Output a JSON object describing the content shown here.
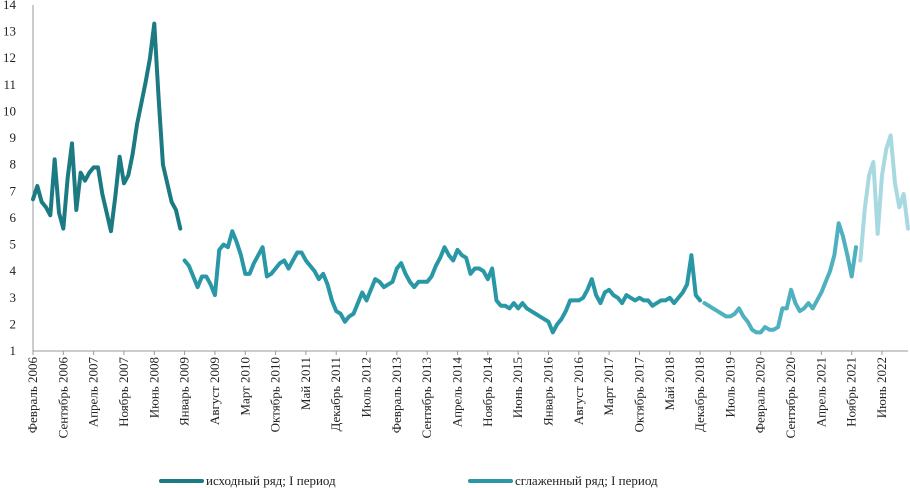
{
  "chart_data": {
    "type": "line",
    "ylim": [
      1,
      14
    ],
    "yticks": [
      1,
      2,
      3,
      4,
      5,
      6,
      7,
      8,
      9,
      10,
      11,
      12,
      13,
      14
    ],
    "x_start": "2006-02",
    "x_end": "2022-12",
    "x_tick_labels": [
      "Февраль 2006",
      "Сентябрь 2006",
      "Апрель 2007",
      "Ноябрь 2007",
      "Июнь 2008",
      "Январь 2009",
      "Август 2009",
      "Март 2010",
      "Октябрь 2010",
      "Май 2011",
      "Декабрь 2011",
      "Июль 2012",
      "Февраль 2013",
      "Сентябрь 2013",
      "Апрель 2014",
      "Ноябрь 2014",
      "Июнь 2015",
      "Январь 2016",
      "Август 2016",
      "Март 2017",
      "Октябрь 2017",
      "Май 2018",
      "Декабрь 2018",
      "Июль 2019",
      "Февраль 2020",
      "Сентябрь 2020",
      "Апрель 2021",
      "Ноябрь 2021",
      "Июнь 2022"
    ],
    "series": [
      {
        "name": "исходный ряд; I период",
        "color": "#1c7a83",
        "points": [
          [
            "2006-02",
            6.7
          ],
          [
            "2006-03",
            7.2
          ],
          [
            "2006-04",
            6.6
          ],
          [
            "2006-05",
            6.4
          ],
          [
            "2006-06",
            6.1
          ],
          [
            "2006-07",
            8.2
          ],
          [
            "2006-08",
            6.2
          ],
          [
            "2006-09",
            5.6
          ],
          [
            "2006-10",
            7.5
          ],
          [
            "2006-11",
            8.8
          ],
          [
            "2006-12",
            6.3
          ],
          [
            "2007-01",
            7.7
          ],
          [
            "2007-02",
            7.4
          ],
          [
            "2007-03",
            7.7
          ],
          [
            "2007-04",
            7.9
          ],
          [
            "2007-05",
            7.9
          ],
          [
            "2007-06",
            6.9
          ],
          [
            "2007-07",
            6.2
          ],
          [
            "2007-08",
            5.5
          ],
          [
            "2007-09",
            6.8
          ],
          [
            "2007-10",
            8.3
          ],
          [
            "2007-11",
            7.3
          ],
          [
            "2007-12",
            7.6
          ],
          [
            "2008-01",
            8.4
          ],
          [
            "2008-02",
            9.5
          ],
          [
            "2008-03",
            10.3
          ],
          [
            "2008-04",
            11.1
          ],
          [
            "2008-05",
            12.0
          ],
          [
            "2008-06",
            13.3
          ],
          [
            "2008-07",
            10.5
          ],
          [
            "2008-08",
            8.0
          ],
          [
            "2008-09",
            7.3
          ],
          [
            "2008-10",
            6.6
          ],
          [
            "2008-11",
            6.3
          ],
          [
            "2008-12",
            5.6
          ]
        ]
      },
      {
        "name": "сглаженный ряд; I период",
        "color": "#2997a5",
        "points": [
          [
            "2009-01",
            4.4
          ],
          [
            "2009-02",
            4.2
          ],
          [
            "2009-03",
            3.8
          ],
          [
            "2009-04",
            3.4
          ],
          [
            "2009-05",
            3.8
          ],
          [
            "2009-06",
            3.8
          ],
          [
            "2009-07",
            3.5
          ],
          [
            "2009-08",
            3.1
          ],
          [
            "2009-09",
            4.8
          ],
          [
            "2009-10",
            5.0
          ],
          [
            "2009-11",
            4.9
          ],
          [
            "2009-12",
            5.5
          ],
          [
            "2010-01",
            5.1
          ],
          [
            "2010-02",
            4.6
          ],
          [
            "2010-03",
            3.9
          ],
          [
            "2010-04",
            3.9
          ],
          [
            "2010-05",
            4.3
          ],
          [
            "2010-06",
            4.6
          ],
          [
            "2010-07",
            4.9
          ],
          [
            "2010-08",
            3.8
          ],
          [
            "2010-09",
            3.9
          ],
          [
            "2010-10",
            4.1
          ],
          [
            "2010-11",
            4.3
          ],
          [
            "2010-12",
            4.4
          ],
          [
            "2011-01",
            4.1
          ],
          [
            "2011-02",
            4.4
          ],
          [
            "2011-03",
            4.7
          ],
          [
            "2011-04",
            4.7
          ],
          [
            "2011-05",
            4.4
          ],
          [
            "2011-06",
            4.2
          ],
          [
            "2011-07",
            4.0
          ],
          [
            "2011-08",
            3.7
          ],
          [
            "2011-09",
            3.9
          ],
          [
            "2011-10",
            3.5
          ],
          [
            "2011-11",
            2.9
          ],
          [
            "2011-12",
            2.5
          ],
          [
            "2012-01",
            2.4
          ],
          [
            "2012-02",
            2.1
          ],
          [
            "2012-03",
            2.3
          ],
          [
            "2012-04",
            2.4
          ],
          [
            "2012-05",
            2.8
          ],
          [
            "2012-06",
            3.2
          ],
          [
            "2012-07",
            2.9
          ],
          [
            "2012-08",
            3.3
          ],
          [
            "2012-09",
            3.7
          ],
          [
            "2012-10",
            3.6
          ],
          [
            "2012-11",
            3.4
          ],
          [
            "2012-12",
            3.5
          ],
          [
            "2013-01",
            3.6
          ],
          [
            "2013-02",
            4.1
          ],
          [
            "2013-03",
            4.3
          ],
          [
            "2013-04",
            3.9
          ],
          [
            "2013-05",
            3.6
          ],
          [
            "2013-06",
            3.4
          ],
          [
            "2013-07",
            3.6
          ],
          [
            "2013-08",
            3.6
          ],
          [
            "2013-09",
            3.6
          ],
          [
            "2013-10",
            3.8
          ],
          [
            "2013-11",
            4.2
          ],
          [
            "2013-12",
            4.5
          ],
          [
            "2014-01",
            4.9
          ],
          [
            "2014-02",
            4.6
          ],
          [
            "2014-03",
            4.4
          ],
          [
            "2014-04",
            4.8
          ],
          [
            "2014-05",
            4.6
          ],
          [
            "2014-06",
            4.5
          ],
          [
            "2014-07",
            3.9
          ],
          [
            "2014-08",
            4.1
          ],
          [
            "2014-09",
            4.1
          ],
          [
            "2014-10",
            4.0
          ],
          [
            "2014-11",
            3.7
          ],
          [
            "2014-12",
            4.1
          ],
          [
            "2015-01",
            2.9
          ],
          [
            "2015-02",
            2.7
          ],
          [
            "2015-03",
            2.7
          ],
          [
            "2015-04",
            2.6
          ],
          [
            "2015-05",
            2.8
          ],
          [
            "2015-06",
            2.6
          ],
          [
            "2015-07",
            2.8
          ],
          [
            "2015-08",
            2.6
          ],
          [
            "2015-09",
            2.5
          ],
          [
            "2015-10",
            2.4
          ],
          [
            "2015-11",
            2.3
          ],
          [
            "2015-12",
            2.2
          ],
          [
            "2016-01",
            2.1
          ],
          [
            "2016-02",
            1.7
          ],
          [
            "2016-03",
            2.0
          ],
          [
            "2016-04",
            2.2
          ],
          [
            "2016-05",
            2.5
          ],
          [
            "2016-06",
            2.9
          ],
          [
            "2016-07",
            2.9
          ],
          [
            "2016-08",
            2.9
          ],
          [
            "2016-09",
            3.0
          ],
          [
            "2016-10",
            3.3
          ],
          [
            "2016-11",
            3.7
          ],
          [
            "2016-12",
            3.1
          ],
          [
            "2017-01",
            2.8
          ],
          [
            "2017-02",
            3.2
          ],
          [
            "2017-03",
            3.3
          ],
          [
            "2017-04",
            3.1
          ],
          [
            "2017-05",
            3.0
          ],
          [
            "2017-06",
            2.8
          ],
          [
            "2017-07",
            3.1
          ],
          [
            "2017-08",
            3.0
          ],
          [
            "2017-09",
            2.9
          ],
          [
            "2017-10",
            3.0
          ],
          [
            "2017-11",
            2.9
          ],
          [
            "2017-12",
            2.9
          ],
          [
            "2018-01",
            2.7
          ],
          [
            "2018-02",
            2.8
          ],
          [
            "2018-03",
            2.9
          ],
          [
            "2018-04",
            2.9
          ],
          [
            "2018-05",
            3.0
          ],
          [
            "2018-06",
            2.8
          ],
          [
            "2018-07",
            3.0
          ],
          [
            "2018-08",
            3.2
          ],
          [
            "2018-09",
            3.5
          ],
          [
            "2018-10",
            4.6
          ],
          [
            "2018-11",
            3.1
          ],
          [
            "2018-12",
            2.9
          ]
        ]
      },
      {
        "name": "",
        "color": "#4fb0bf",
        "points": [
          [
            "2019-01",
            2.8
          ],
          [
            "2019-02",
            2.7
          ],
          [
            "2019-03",
            2.6
          ],
          [
            "2019-04",
            2.5
          ],
          [
            "2019-05",
            2.4
          ],
          [
            "2019-06",
            2.3
          ],
          [
            "2019-07",
            2.3
          ],
          [
            "2019-08",
            2.4
          ],
          [
            "2019-09",
            2.6
          ],
          [
            "2019-10",
            2.3
          ],
          [
            "2019-11",
            2.1
          ],
          [
            "2019-12",
            1.8
          ],
          [
            "2020-01",
            1.7
          ],
          [
            "2020-02",
            1.7
          ],
          [
            "2020-03",
            1.9
          ],
          [
            "2020-04",
            1.8
          ],
          [
            "2020-05",
            1.8
          ],
          [
            "2020-06",
            1.9
          ],
          [
            "2020-07",
            2.6
          ],
          [
            "2020-08",
            2.6
          ],
          [
            "2020-09",
            3.3
          ],
          [
            "2020-10",
            2.8
          ],
          [
            "2020-11",
            2.5
          ],
          [
            "2020-12",
            2.6
          ],
          [
            "2021-01",
            2.8
          ],
          [
            "2021-02",
            2.6
          ],
          [
            "2021-03",
            2.9
          ],
          [
            "2021-04",
            3.2
          ],
          [
            "2021-05",
            3.6
          ],
          [
            "2021-06",
            4.0
          ],
          [
            "2021-07",
            4.6
          ],
          [
            "2021-08",
            5.8
          ],
          [
            "2021-09",
            5.3
          ],
          [
            "2021-10",
            4.6
          ],
          [
            "2021-11",
            3.8
          ],
          [
            "2021-12",
            4.9
          ]
        ]
      },
      {
        "name": "",
        "color": "#a8d8e0",
        "points": [
          [
            "2022-01",
            4.4
          ],
          [
            "2022-02",
            6.3
          ],
          [
            "2022-03",
            7.6
          ],
          [
            "2022-04",
            8.1
          ],
          [
            "2022-05",
            5.4
          ],
          [
            "2022-06",
            7.6
          ],
          [
            "2022-07",
            8.6
          ],
          [
            "2022-08",
            9.1
          ],
          [
            "2022-09",
            7.3
          ],
          [
            "2022-10",
            6.4
          ],
          [
            "2022-11",
            6.9
          ],
          [
            "2022-12",
            5.6
          ]
        ]
      }
    ],
    "legend_position": "bottom"
  }
}
